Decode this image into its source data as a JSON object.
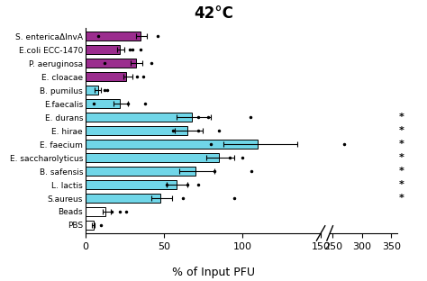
{
  "chart_data": {
    "type": "bar",
    "orientation": "horizontal",
    "title": "42°C",
    "x_label": "% of Input PFU",
    "categories": [
      "S. entericaΔInvA",
      "E.coli ECC-1470",
      "P. aeruginosa",
      "E. cloacae",
      "B. pumilus",
      "E.faecalis",
      "E. durans",
      "E. hirae",
      "E. faecium",
      "E. saccharolyticus",
      "B. safensis",
      "L. lactis",
      "S.aureus",
      "Beads",
      "PBS"
    ],
    "values": [
      35,
      22,
      32,
      26,
      8,
      22,
      68,
      65,
      110,
      85,
      70,
      58,
      48,
      13,
      5
    ],
    "error_low": [
      3,
      2,
      3,
      2,
      2,
      4,
      10,
      8,
      22,
      8,
      10,
      6,
      6,
      2,
      1
    ],
    "error_high": [
      4,
      3,
      4,
      4,
      2,
      5,
      12,
      10,
      25,
      10,
      12,
      7,
      7,
      3,
      1
    ],
    "points": [
      [
        46,
        8
      ],
      [
        28,
        30,
        35
      ],
      [
        42,
        12
      ],
      [
        33,
        37
      ],
      [
        12,
        14
      ],
      [
        5,
        27,
        38
      ],
      [
        72,
        78,
        105
      ],
      [
        56,
        72,
        85
      ],
      [
        80,
        270
      ],
      [
        92,
        100
      ],
      [
        82,
        106
      ],
      [
        52,
        65,
        72
      ],
      [
        62,
        95
      ],
      [
        17,
        22,
        26
      ],
      [
        10
      ]
    ],
    "significance": [
      null,
      null,
      null,
      null,
      null,
      null,
      "*",
      "*",
      "*",
      "*",
      "*",
      "*",
      "*",
      null,
      null
    ],
    "colors": [
      "#9B2D8E",
      "#9B2D8E",
      "#9B2D8E",
      "#9B2D8E",
      "#70D6E8",
      "#70D6E8",
      "#70D6E8",
      "#70D6E8",
      "#70D6E8",
      "#70D6E8",
      "#70D6E8",
      "#70D6E8",
      "#70D6E8",
      "#FFFFFF",
      "#FFFFFF"
    ],
    "xlim": [
      0,
      150
    ],
    "xticks": [
      0,
      50,
      100,
      150
    ],
    "x2lim": [
      245,
      360
    ],
    "x2ticks": [
      250,
      300,
      350
    ]
  }
}
